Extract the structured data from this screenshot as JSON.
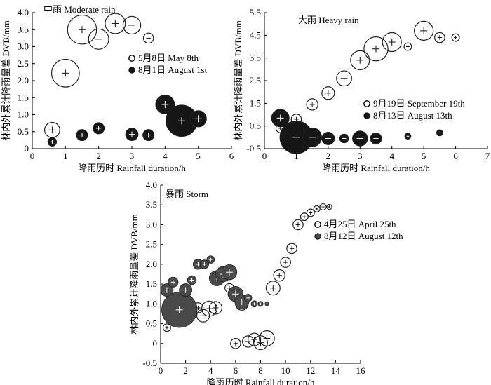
{
  "chart_data": [
    {
      "type": "scatter",
      "title": "中雨 Moderate rain",
      "xlabel": "降雨历时 Rainfall duration/h",
      "ylabel": "林内外累计降雨量差 DVB/mm",
      "xlim": [
        0,
        6
      ],
      "ylim": [
        0,
        4.0
      ],
      "xticks": [
        "0",
        "1",
        "2",
        "3",
        "4",
        "5",
        "6"
      ],
      "yticks": [
        "0",
        "0.5",
        "1.0",
        "1.5",
        "2.0",
        "2.5",
        "3.0",
        "3.5",
        "4.0"
      ],
      "legend_position": "center-right",
      "style": "bw",
      "series": [
        {
          "name": "5月8日 May 8th",
          "marker": "open",
          "points": [
            {
              "x": 0.6,
              "y": 0.55,
              "size": 1.2,
              "sign": "+"
            },
            {
              "x": 1.0,
              "y": 2.22,
              "size": 2.2,
              "sign": "+"
            },
            {
              "x": 1.5,
              "y": 3.5,
              "size": 2.3,
              "sign": "+"
            },
            {
              "x": 2.0,
              "y": 3.22,
              "size": 1.6,
              "sign": "-"
            },
            {
              "x": 2.5,
              "y": 3.68,
              "size": 1.6,
              "sign": "+"
            },
            {
              "x": 3.0,
              "y": 3.63,
              "size": 1.4,
              "sign": "-"
            },
            {
              "x": 3.5,
              "y": 3.25,
              "size": 0.8,
              "sign": "-"
            }
          ]
        },
        {
          "name": "8月1日 August 1st",
          "marker": "filled",
          "points": [
            {
              "x": 0.6,
              "y": 0.2,
              "size": 0.7,
              "sign": "+"
            },
            {
              "x": 1.5,
              "y": 0.4,
              "size": 0.9,
              "sign": "+"
            },
            {
              "x": 2.0,
              "y": 0.6,
              "size": 0.9,
              "sign": "+"
            },
            {
              "x": 3.0,
              "y": 0.42,
              "size": 1.0,
              "sign": "+"
            },
            {
              "x": 3.5,
              "y": 0.4,
              "size": 0.9,
              "sign": "+"
            },
            {
              "x": 4.0,
              "y": 1.3,
              "size": 1.5,
              "sign": "+"
            },
            {
              "x": 4.5,
              "y": 0.82,
              "size": 2.5,
              "sign": "+"
            },
            {
              "x": 5.0,
              "y": 0.88,
              "size": 1.3,
              "sign": "+"
            }
          ]
        }
      ]
    },
    {
      "type": "scatter",
      "title": "大雨 Heavy rain",
      "xlabel": "降雨历时 Rainfall duration/h",
      "ylabel": "林内外累计降雨量差 DVB/mm",
      "xlim": [
        0,
        7
      ],
      "ylim": [
        -0.5,
        5.5
      ],
      "xticks": [
        "0",
        "1",
        "2",
        "3",
        "4",
        "5",
        "6",
        "7"
      ],
      "yticks": [
        "-0.5",
        "0.5",
        "1.5",
        "2.5",
        "3.5",
        "4.5",
        "5.5"
      ],
      "legend_position": "center-right",
      "style": "bw",
      "series": [
        {
          "name": "9月19日 September 19th",
          "marker": "open",
          "points": [
            {
              "x": 0.5,
              "y": 0.4,
              "size": 0.7,
              "sign": "+"
            },
            {
              "x": 1.0,
              "y": 0.8,
              "size": 0.8,
              "sign": "+"
            },
            {
              "x": 1.5,
              "y": 1.45,
              "size": 0.9,
              "sign": "+"
            },
            {
              "x": 2.0,
              "y": 1.95,
              "size": 1.0,
              "sign": "+"
            },
            {
              "x": 2.5,
              "y": 2.6,
              "size": 1.2,
              "sign": "+"
            },
            {
              "x": 3.0,
              "y": 3.4,
              "size": 1.5,
              "sign": "+"
            },
            {
              "x": 3.5,
              "y": 3.9,
              "size": 1.9,
              "sign": "+"
            },
            {
              "x": 4.0,
              "y": 4.2,
              "size": 1.5,
              "sign": "+"
            },
            {
              "x": 4.5,
              "y": 4.0,
              "size": 0.6,
              "sign": "+"
            },
            {
              "x": 5.0,
              "y": 4.7,
              "size": 1.5,
              "sign": "+"
            },
            {
              "x": 5.5,
              "y": 4.4,
              "size": 0.8,
              "sign": "+"
            },
            {
              "x": 6.0,
              "y": 4.4,
              "size": 0.6,
              "sign": "+"
            }
          ]
        },
        {
          "name": "8月13日 August 13th",
          "marker": "filled",
          "points": [
            {
              "x": 0.5,
              "y": 0.85,
              "size": 1.4,
              "sign": "+"
            },
            {
              "x": 1.0,
              "y": 0.0,
              "size": 2.6,
              "sign": "-"
            },
            {
              "x": 1.5,
              "y": 0.0,
              "size": 1.5,
              "sign": "-"
            },
            {
              "x": 2.0,
              "y": -0.05,
              "size": 1.0,
              "sign": "-"
            },
            {
              "x": 2.5,
              "y": -0.05,
              "size": 0.7,
              "sign": "-"
            },
            {
              "x": 3.0,
              "y": -0.05,
              "size": 1.2,
              "sign": "-"
            },
            {
              "x": 3.5,
              "y": -0.05,
              "size": 0.9,
              "sign": "-"
            },
            {
              "x": 4.5,
              "y": 0.05,
              "size": 0.5,
              "sign": "-"
            },
            {
              "x": 5.5,
              "y": 0.2,
              "size": 0.5,
              "sign": "-"
            }
          ]
        }
      ]
    },
    {
      "type": "scatter",
      "title": "暴雨 Storm",
      "xlabel": "降雨历时 Rainfall duration/h",
      "ylabel": "林内外累计降雨量差 DVB/mm",
      "xlim": [
        0,
        16
      ],
      "ylim": [
        -0.5,
        4.0
      ],
      "xticks": [
        "0",
        "2",
        "4",
        "6",
        "8",
        "10",
        "12",
        "14",
        "16"
      ],
      "yticks": [
        "-0.5",
        "0",
        "0.5",
        "1.0",
        "1.5",
        "2.0",
        "2.5",
        "3.0",
        "3.5",
        "4.0"
      ],
      "legend_position": "center-right",
      "style": "gray",
      "series": [
        {
          "name": "4月25日 April 25th",
          "marker": "open",
          "points": [
            {
              "x": 0.5,
              "y": 0.4,
              "size": 0.6,
              "sign": "+"
            },
            {
              "x": 2.3,
              "y": 0.9,
              "size": 1.0,
              "sign": "+"
            },
            {
              "x": 3.0,
              "y": 0.9,
              "size": 0.8,
              "sign": "+"
            },
            {
              "x": 3.4,
              "y": 0.7,
              "size": 1.0,
              "sign": "+"
            },
            {
              "x": 3.9,
              "y": 0.88,
              "size": 1.2,
              "sign": "+"
            },
            {
              "x": 4.4,
              "y": 0.9,
              "size": 1.0,
              "sign": "+"
            },
            {
              "x": 5.5,
              "y": 1.4,
              "size": 0.7,
              "sign": "+"
            },
            {
              "x": 6.0,
              "y": 0.0,
              "size": 0.8,
              "sign": "+"
            },
            {
              "x": 6.5,
              "y": 1.0,
              "size": 1.0,
              "sign": "+"
            },
            {
              "x": 7.0,
              "y": 0.05,
              "size": 0.9,
              "sign": "+"
            },
            {
              "x": 7.5,
              "y": 0.1,
              "size": 1.0,
              "sign": "+"
            },
            {
              "x": 8.0,
              "y": 0.02,
              "size": 1.1,
              "sign": "+"
            },
            {
              "x": 8.5,
              "y": 0.13,
              "size": 1.2,
              "sign": "+"
            },
            {
              "x": 9.0,
              "y": 1.4,
              "size": 1.1,
              "sign": "+"
            },
            {
              "x": 9.5,
              "y": 1.72,
              "size": 0.9,
              "sign": "+"
            },
            {
              "x": 10.0,
              "y": 2.05,
              "size": 0.8,
              "sign": "+"
            },
            {
              "x": 10.5,
              "y": 2.4,
              "size": 0.8,
              "sign": "+"
            },
            {
              "x": 11.0,
              "y": 3.0,
              "size": 0.8,
              "sign": "+"
            },
            {
              "x": 11.5,
              "y": 3.2,
              "size": 0.6,
              "sign": "+"
            },
            {
              "x": 12.0,
              "y": 3.3,
              "size": 0.6,
              "sign": "+"
            },
            {
              "x": 12.5,
              "y": 3.4,
              "size": 0.5,
              "sign": "+"
            },
            {
              "x": 13.0,
              "y": 3.45,
              "size": 0.5,
              "sign": "+"
            },
            {
              "x": 13.5,
              "y": 3.45,
              "size": 0.4,
              "sign": "+"
            }
          ]
        },
        {
          "name": "8月12日 August 12th",
          "marker": "filled",
          "points": [
            {
              "x": 0.5,
              "y": 1.35,
              "size": 1.0,
              "sign": "+"
            },
            {
              "x": 1.0,
              "y": 1.55,
              "size": 0.8,
              "sign": "+"
            },
            {
              "x": 1.5,
              "y": 0.85,
              "size": 2.8,
              "sign": "+"
            },
            {
              "x": 2.0,
              "y": 1.35,
              "size": 1.0,
              "sign": "+"
            },
            {
              "x": 2.5,
              "y": 1.6,
              "size": 0.7,
              "sign": "+"
            },
            {
              "x": 3.0,
              "y": 2.0,
              "size": 0.8,
              "sign": "+"
            },
            {
              "x": 3.5,
              "y": 2.0,
              "size": 0.7,
              "sign": "+"
            },
            {
              "x": 4.0,
              "y": 2.12,
              "size": 0.6,
              "sign": "+"
            },
            {
              "x": 4.5,
              "y": 1.65,
              "size": 1.2,
              "sign": "+"
            },
            {
              "x": 5.0,
              "y": 1.75,
              "size": 1.2,
              "sign": "+"
            },
            {
              "x": 5.5,
              "y": 1.8,
              "size": 1.2,
              "sign": "+"
            },
            {
              "x": 6.0,
              "y": 1.25,
              "size": 1.2,
              "sign": "+"
            },
            {
              "x": 6.5,
              "y": 1.05,
              "size": 1.1,
              "sign": "+"
            },
            {
              "x": 7.0,
              "y": 1.15,
              "size": 0.6,
              "sign": "+"
            },
            {
              "x": 7.5,
              "y": 1.0,
              "size": 0.5,
              "sign": "+"
            },
            {
              "x": 8.0,
              "y": 1.0,
              "size": 0.4,
              "sign": "+"
            },
            {
              "x": 8.5,
              "y": 1.0,
              "size": 0.3,
              "sign": "+"
            }
          ]
        }
      ]
    }
  ]
}
